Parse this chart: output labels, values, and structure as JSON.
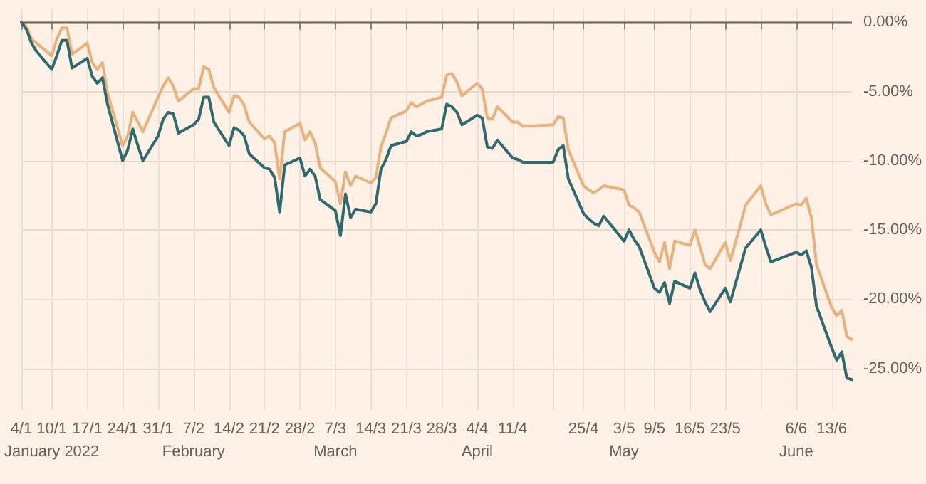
{
  "chart_data": {
    "type": "line",
    "x": [
      "2022-01-04",
      "2022-01-05",
      "2022-01-06",
      "2022-01-07",
      "2022-01-10",
      "2022-01-11",
      "2022-01-12",
      "2022-01-13",
      "2022-01-14",
      "2022-01-17",
      "2022-01-18",
      "2022-01-19",
      "2022-01-20",
      "2022-01-21",
      "2022-01-24",
      "2022-01-25",
      "2022-01-26",
      "2022-01-27",
      "2022-01-28",
      "2022-01-31",
      "2022-02-01",
      "2022-02-02",
      "2022-02-03",
      "2022-02-04",
      "2022-02-07",
      "2022-02-08",
      "2022-02-09",
      "2022-02-10",
      "2022-02-11",
      "2022-02-14",
      "2022-02-15",
      "2022-02-16",
      "2022-02-17",
      "2022-02-18",
      "2022-02-21",
      "2022-02-22",
      "2022-02-23",
      "2022-02-24",
      "2022-02-25",
      "2022-02-28",
      "2022-03-01",
      "2022-03-02",
      "2022-03-03",
      "2022-03-04",
      "2022-03-07",
      "2022-03-08",
      "2022-03-09",
      "2022-03-10",
      "2022-03-11",
      "2022-03-14",
      "2022-03-15",
      "2022-03-16",
      "2022-03-17",
      "2022-03-18",
      "2022-03-21",
      "2022-03-22",
      "2022-03-23",
      "2022-03-24",
      "2022-03-25",
      "2022-03-28",
      "2022-03-29",
      "2022-03-30",
      "2022-03-31",
      "2022-04-01",
      "2022-04-04",
      "2022-04-05",
      "2022-04-06",
      "2022-04-07",
      "2022-04-08",
      "2022-04-11",
      "2022-04-12",
      "2022-04-13",
      "2022-04-14",
      "2022-04-19",
      "2022-04-20",
      "2022-04-21",
      "2022-04-22",
      "2022-04-25",
      "2022-04-26",
      "2022-04-27",
      "2022-04-28",
      "2022-04-29",
      "2022-05-03",
      "2022-05-04",
      "2022-05-05",
      "2022-05-06",
      "2022-05-09",
      "2022-05-10",
      "2022-05-11",
      "2022-05-12",
      "2022-05-13",
      "2022-05-16",
      "2022-05-17",
      "2022-05-18",
      "2022-05-19",
      "2022-05-20",
      "2022-05-23",
      "2022-05-24",
      "2022-05-25",
      "2022-05-26",
      "2022-05-27",
      "2022-05-30",
      "2022-05-31",
      "2022-06-01",
      "2022-06-06",
      "2022-06-07",
      "2022-06-08",
      "2022-06-09",
      "2022-06-10",
      "2022-06-13",
      "2022-06-14",
      "2022-06-15",
      "2022-06-16",
      "2022-06-17"
    ],
    "series": [
      {
        "color": "#e9b27c",
        "values": [
          0,
          -0.3,
          -1.2,
          -1.5,
          -2.4,
          -1.2,
          -0.4,
          -0.4,
          -2.3,
          -1.5,
          -2.9,
          -3.4,
          -2.9,
          -5.1,
          -8.9,
          -8.2,
          -6.5,
          -7.2,
          -7.9,
          -5.4,
          -4.6,
          -4.0,
          -4.6,
          -5.7,
          -4.8,
          -4.8,
          -3.2,
          -3.4,
          -4.7,
          -6.5,
          -5.3,
          -5.4,
          -6.0,
          -7.2,
          -8.4,
          -8.2,
          -8.7,
          -11.3,
          -7.9,
          -7.3,
          -8.5,
          -7.9,
          -8.7,
          -10.5,
          -11.5,
          -13.1,
          -10.8,
          -11.8,
          -11.1,
          -11.6,
          -11.2,
          -9.0,
          -8.0,
          -6.9,
          -6.4,
          -5.8,
          -6.1,
          -5.9,
          -5.7,
          -5.4,
          -3.8,
          -3.7,
          -4.3,
          -5.3,
          -4.4,
          -4.8,
          -6.9,
          -7.0,
          -6.1,
          -7.2,
          -7.2,
          -7.5,
          -7.5,
          -7.4,
          -6.8,
          -6.9,
          -9.2,
          -11.8,
          -12.1,
          -12.3,
          -12.1,
          -11.8,
          -12.1,
          -13.2,
          -13.4,
          -13.7,
          -16.6,
          -17.3,
          -15.9,
          -17.8,
          -15.8,
          -16.1,
          -15.0,
          -16.2,
          -17.5,
          -17.8,
          -15.9,
          -17.2,
          -15.9,
          -14.6,
          -13.2,
          -11.8,
          -13.1,
          -13.9,
          -13.1,
          -13.2,
          -12.7,
          -14.1,
          -17.5,
          -20.6,
          -21.2,
          -20.8,
          -22.7,
          -22.9
        ]
      },
      {
        "color": "#2f6a6e",
        "values": [
          0,
          -0.5,
          -1.5,
          -2.1,
          -3.4,
          -2.4,
          -1.3,
          -1.3,
          -3.3,
          -2.6,
          -3.9,
          -4.4,
          -4.0,
          -5.9,
          -10.0,
          -9.2,
          -7.7,
          -8.9,
          -10.0,
          -8.2,
          -7.0,
          -6.5,
          -6.6,
          -8.0,
          -7.4,
          -7.0,
          -5.4,
          -5.4,
          -7.2,
          -8.9,
          -7.6,
          -7.8,
          -8.2,
          -9.5,
          -10.5,
          -10.6,
          -11.2,
          -13.7,
          -10.3,
          -9.8,
          -11.1,
          -10.6,
          -11.1,
          -12.8,
          -13.6,
          -15.4,
          -12.4,
          -14.1,
          -13.5,
          -13.7,
          -13.1,
          -10.6,
          -9.9,
          -8.9,
          -8.6,
          -7.9,
          -8.2,
          -8.1,
          -7.9,
          -7.7,
          -5.9,
          -6.1,
          -6.5,
          -7.4,
          -6.7,
          -6.9,
          -9.0,
          -9.1,
          -8.5,
          -9.8,
          -9.9,
          -10.1,
          -10.1,
          -10.1,
          -9.2,
          -8.9,
          -11.3,
          -13.8,
          -14.2,
          -14.5,
          -14.7,
          -14.0,
          -15.8,
          -15.0,
          -15.7,
          -16.2,
          -19.2,
          -19.5,
          -18.8,
          -20.3,
          -18.7,
          -19.2,
          -18.1,
          -19.3,
          -20.2,
          -20.9,
          -19.2,
          -20.2,
          -18.9,
          -17.6,
          -16.3,
          -15.0,
          -16.2,
          -17.3,
          -16.6,
          -16.8,
          -16.5,
          -17.7,
          -20.5,
          -23.5,
          -24.4,
          -23.8,
          -25.7,
          -25.8
        ]
      }
    ],
    "xlim": [
      "2022-01-04",
      "2022-06-17"
    ],
    "xticks": [
      {
        "value": "2022-01-04",
        "label": "4/1"
      },
      {
        "value": "2022-01-10",
        "label": "10/1"
      },
      {
        "value": "2022-01-17",
        "label": "17/1"
      },
      {
        "value": "2022-01-24",
        "label": "24/1"
      },
      {
        "value": "2022-01-31",
        "label": "31/1"
      },
      {
        "value": "2022-02-07",
        "label": "7/2"
      },
      {
        "value": "2022-02-14",
        "label": "14/2"
      },
      {
        "value": "2022-02-21",
        "label": "21/2"
      },
      {
        "value": "2022-02-28",
        "label": "28/2"
      },
      {
        "value": "2022-03-07",
        "label": "7/3"
      },
      {
        "value": "2022-03-14",
        "label": "14/3"
      },
      {
        "value": "2022-03-21",
        "label": "21/3"
      },
      {
        "value": "2022-03-28",
        "label": "28/3"
      },
      {
        "value": "2022-04-04",
        "label": "4/4"
      },
      {
        "value": "2022-04-11",
        "label": "11/4"
      },
      {
        "value": "2022-04-19",
        "label": null
      },
      {
        "value": "2022-04-25",
        "label": "25/4"
      },
      {
        "value": "2022-05-03",
        "label": "3/5"
      },
      {
        "value": "2022-05-09",
        "label": "9/5"
      },
      {
        "value": "2022-05-16",
        "label": "16/5"
      },
      {
        "value": "2022-05-23",
        "label": "23/5"
      },
      {
        "value": "2022-05-30",
        "label": null
      },
      {
        "value": "2022-06-06",
        "label": "6/6"
      },
      {
        "value": "2022-06-13",
        "label": "13/6"
      }
    ],
    "x2lim": [
      "2022-01-04",
      "2022-06-17"
    ],
    "x2ticks": [
      {
        "value": "2022-01-10",
        "label": "January 2022"
      },
      {
        "value": "2022-02-07",
        "label": "February"
      },
      {
        "value": "2022-03-07",
        "label": "March"
      },
      {
        "value": "2022-04-04",
        "label": "April"
      },
      {
        "value": "2022-05-03",
        "label": "May"
      },
      {
        "value": "2022-06-06",
        "label": "June"
      }
    ],
    "ylim": [
      -28,
      1
    ],
    "yticks": [
      {
        "value": 0,
        "label": "0.00%"
      },
      {
        "value": -5,
        "label": "-5.00%"
      },
      {
        "value": -10,
        "label": "-10.00%"
      },
      {
        "value": -15,
        "label": "-15.00%"
      },
      {
        "value": -20,
        "label": "-20.00%"
      },
      {
        "value": -25,
        "label": "-25.00%"
      }
    ],
    "ref_lines": [
      {
        "axis": "y",
        "value": 0,
        "label": null,
        "color": "#6e655c"
      }
    ],
    "grid": true,
    "line_style": "solid"
  }
}
